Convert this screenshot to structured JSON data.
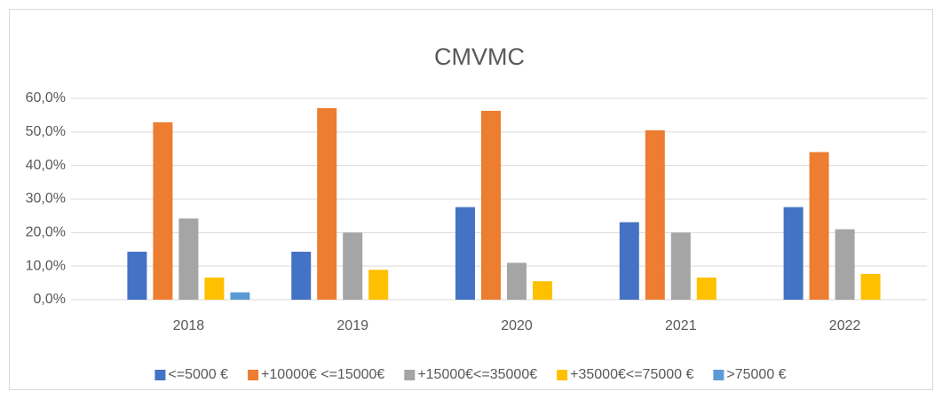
{
  "chart_data": {
    "type": "bar",
    "title": "CMVMC",
    "categories": [
      "2018",
      "2019",
      "2020",
      "2021",
      "2022"
    ],
    "series": [
      {
        "name": "<=5000 €",
        "color": "#4472c4",
        "values": [
          14.3,
          14.3,
          27.6,
          23.1,
          27.6
        ]
      },
      {
        "name": "+10000€ <=15000€",
        "color": "#ed7d31",
        "values": [
          52.9,
          57.1,
          56.3,
          50.5,
          44.0
        ]
      },
      {
        "name": "+15000€<=35000€",
        "color": "#a5a5a5",
        "values": [
          24.2,
          20.0,
          11.0,
          20.0,
          21.0
        ]
      },
      {
        "name": "+35000€<=75000 €",
        "color": "#ffc000",
        "values": [
          6.6,
          8.9,
          5.5,
          6.6,
          7.7
        ]
      },
      {
        "name": ">75000 €",
        "color": "#5b9bd5",
        "values": [
          2.2,
          0,
          0,
          0,
          0
        ]
      }
    ],
    "ylim": [
      0,
      60
    ],
    "yticks": [
      {
        "value": 0,
        "label": "0,0%"
      },
      {
        "value": 10,
        "label": "10,0%"
      },
      {
        "value": 20,
        "label": "20,0%"
      },
      {
        "value": 30,
        "label": "30,0%"
      },
      {
        "value": 40,
        "label": "40,0%"
      },
      {
        "value": 50,
        "label": "50,0%"
      },
      {
        "value": 60,
        "label": "60,0%"
      }
    ],
    "grid": true,
    "legend": "bottom"
  }
}
